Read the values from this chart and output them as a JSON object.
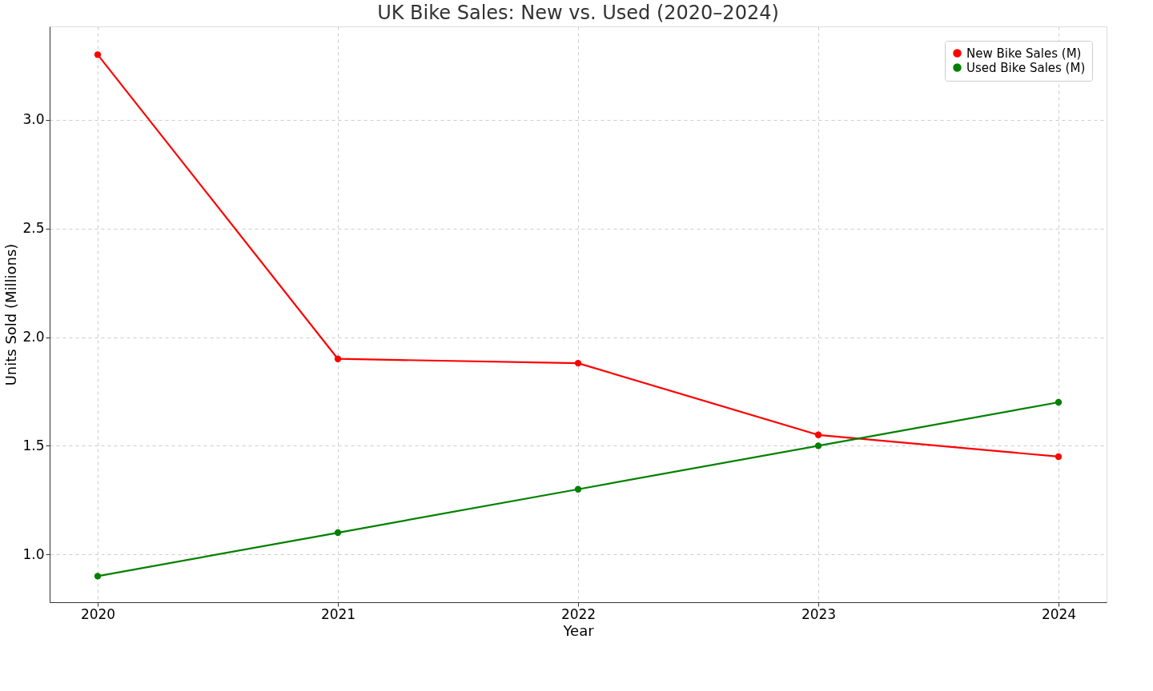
{
  "chart_data": {
    "type": "line",
    "title": "UK Bike Sales: New vs. Used (2020–2024)",
    "xlabel": "Year",
    "ylabel": "Units Sold (Millions)",
    "x": [
      2020,
      2021,
      2022,
      2023,
      2024
    ],
    "series": [
      {
        "name": "New Bike Sales (M)",
        "color": "#ff0000",
        "values": [
          3.3,
          1.9,
          1.88,
          1.55,
          1.45
        ]
      },
      {
        "name": "Used Bike Sales (M)",
        "color": "#008000",
        "values": [
          0.9,
          1.1,
          1.3,
          1.5,
          1.7
        ]
      }
    ],
    "xlim": [
      2019.8,
      2024.2
    ],
    "xticks": [
      2020,
      2021,
      2022,
      2023,
      2024
    ],
    "ylim": [
      0.78,
      3.43
    ],
    "yticks": [
      {
        "value": 1.0,
        "label": "1.0"
      },
      {
        "value": 1.5,
        "label": "1.5"
      },
      {
        "value": 2.0,
        "label": "2.0"
      },
      {
        "value": 2.5,
        "label": "2.5"
      },
      {
        "value": 3.0,
        "label": "3.0"
      }
    ],
    "grid": true,
    "legend": "top right",
    "marker": "circle",
    "line_style": "solid"
  }
}
